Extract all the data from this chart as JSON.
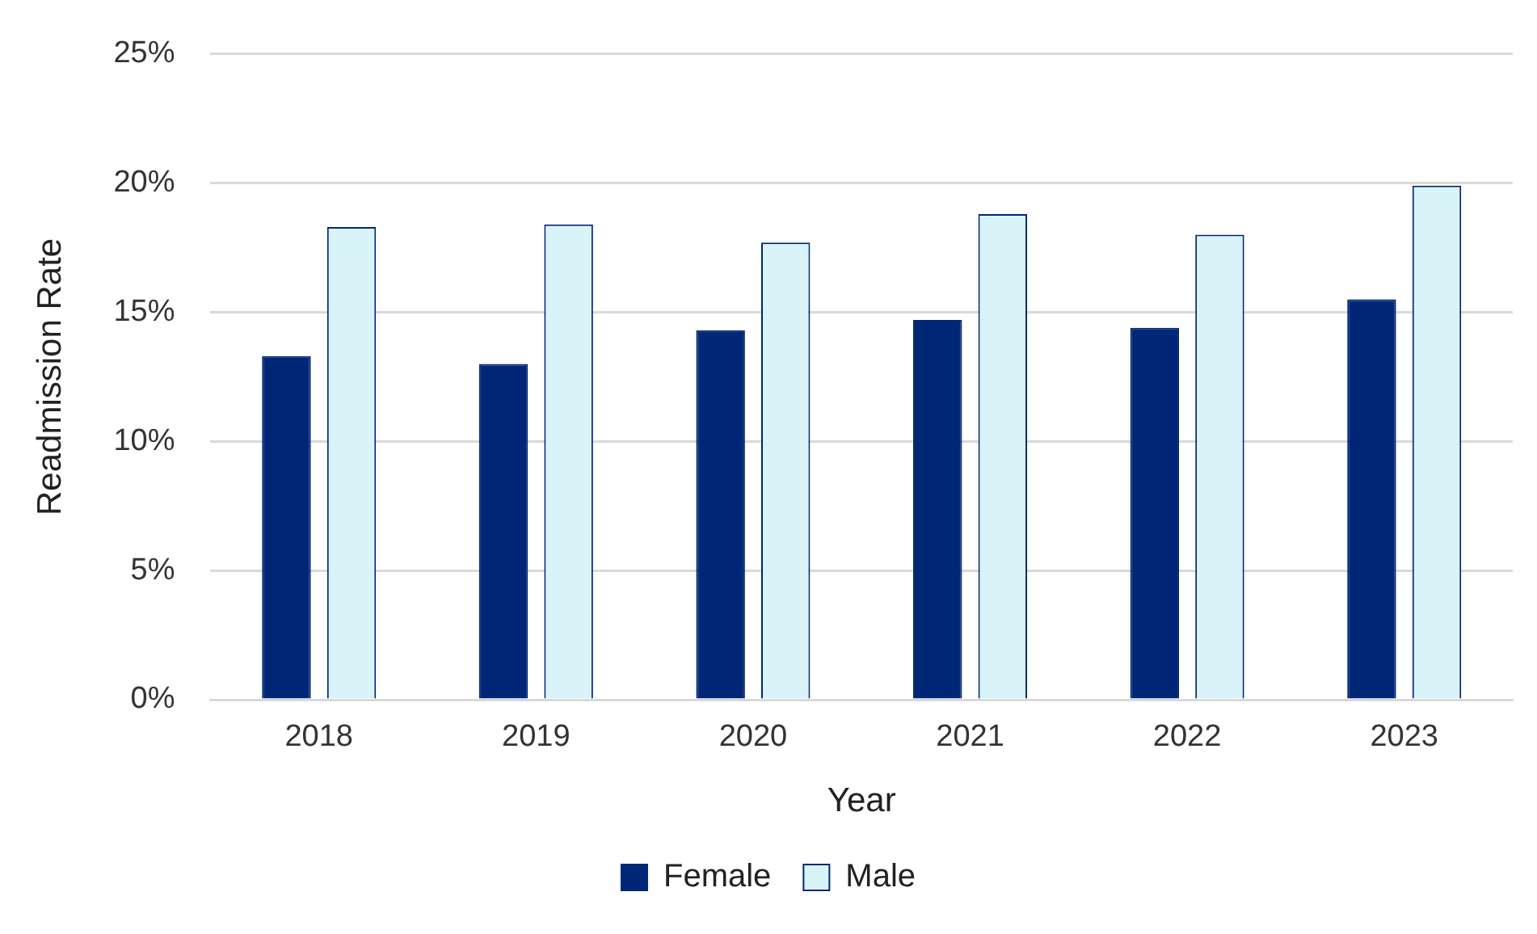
{
  "chart_data": {
    "type": "bar",
    "xlabel": "Year",
    "ylabel": "Readmission Rate",
    "categories": [
      "2018",
      "2019",
      "2020",
      "2021",
      "2022",
      "2023"
    ],
    "series": [
      {
        "name": "Female",
        "color": "#002776",
        "values": [
          13.3,
          13.0,
          14.3,
          14.7,
          14.4,
          15.5
        ]
      },
      {
        "name": "Male",
        "color": "#d9f4f9",
        "values": [
          18.3,
          18.4,
          17.7,
          18.8,
          18.0,
          19.9
        ]
      }
    ],
    "ylim": [
      0,
      25
    ],
    "yticks": [
      {
        "value": 0,
        "label": "0%"
      },
      {
        "value": 5,
        "label": "5%"
      },
      {
        "value": 10,
        "label": "10%"
      },
      {
        "value": 15,
        "label": "15%"
      },
      {
        "value": 20,
        "label": "20%"
      },
      {
        "value": 25,
        "label": "25%"
      }
    ],
    "grid": "y",
    "legend": "bottom"
  }
}
